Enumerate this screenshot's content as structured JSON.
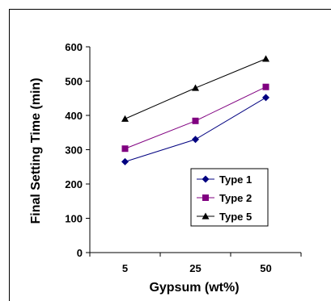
{
  "chart_data": {
    "type": "line",
    "title": "",
    "xlabel": "Gypsum (wt%)",
    "ylabel": "Final Setting Time (min)",
    "categories": [
      "5",
      "25",
      "50"
    ],
    "ylim": [
      0,
      600
    ],
    "yticks": [
      "0",
      "100",
      "200",
      "300",
      "400",
      "500",
      "600"
    ],
    "grid": false,
    "legend_position": "bottom-right",
    "series": [
      {
        "name": "Type 1",
        "values": [
          265,
          330,
          452
        ],
        "color": "#000080",
        "marker": "diamond"
      },
      {
        "name": "Type 2",
        "values": [
          303,
          384,
          483
        ],
        "color": "#800080",
        "marker": "square"
      },
      {
        "name": "Type 5",
        "values": [
          390,
          480,
          565
        ],
        "color": "#000000",
        "marker": "triangle"
      }
    ]
  }
}
